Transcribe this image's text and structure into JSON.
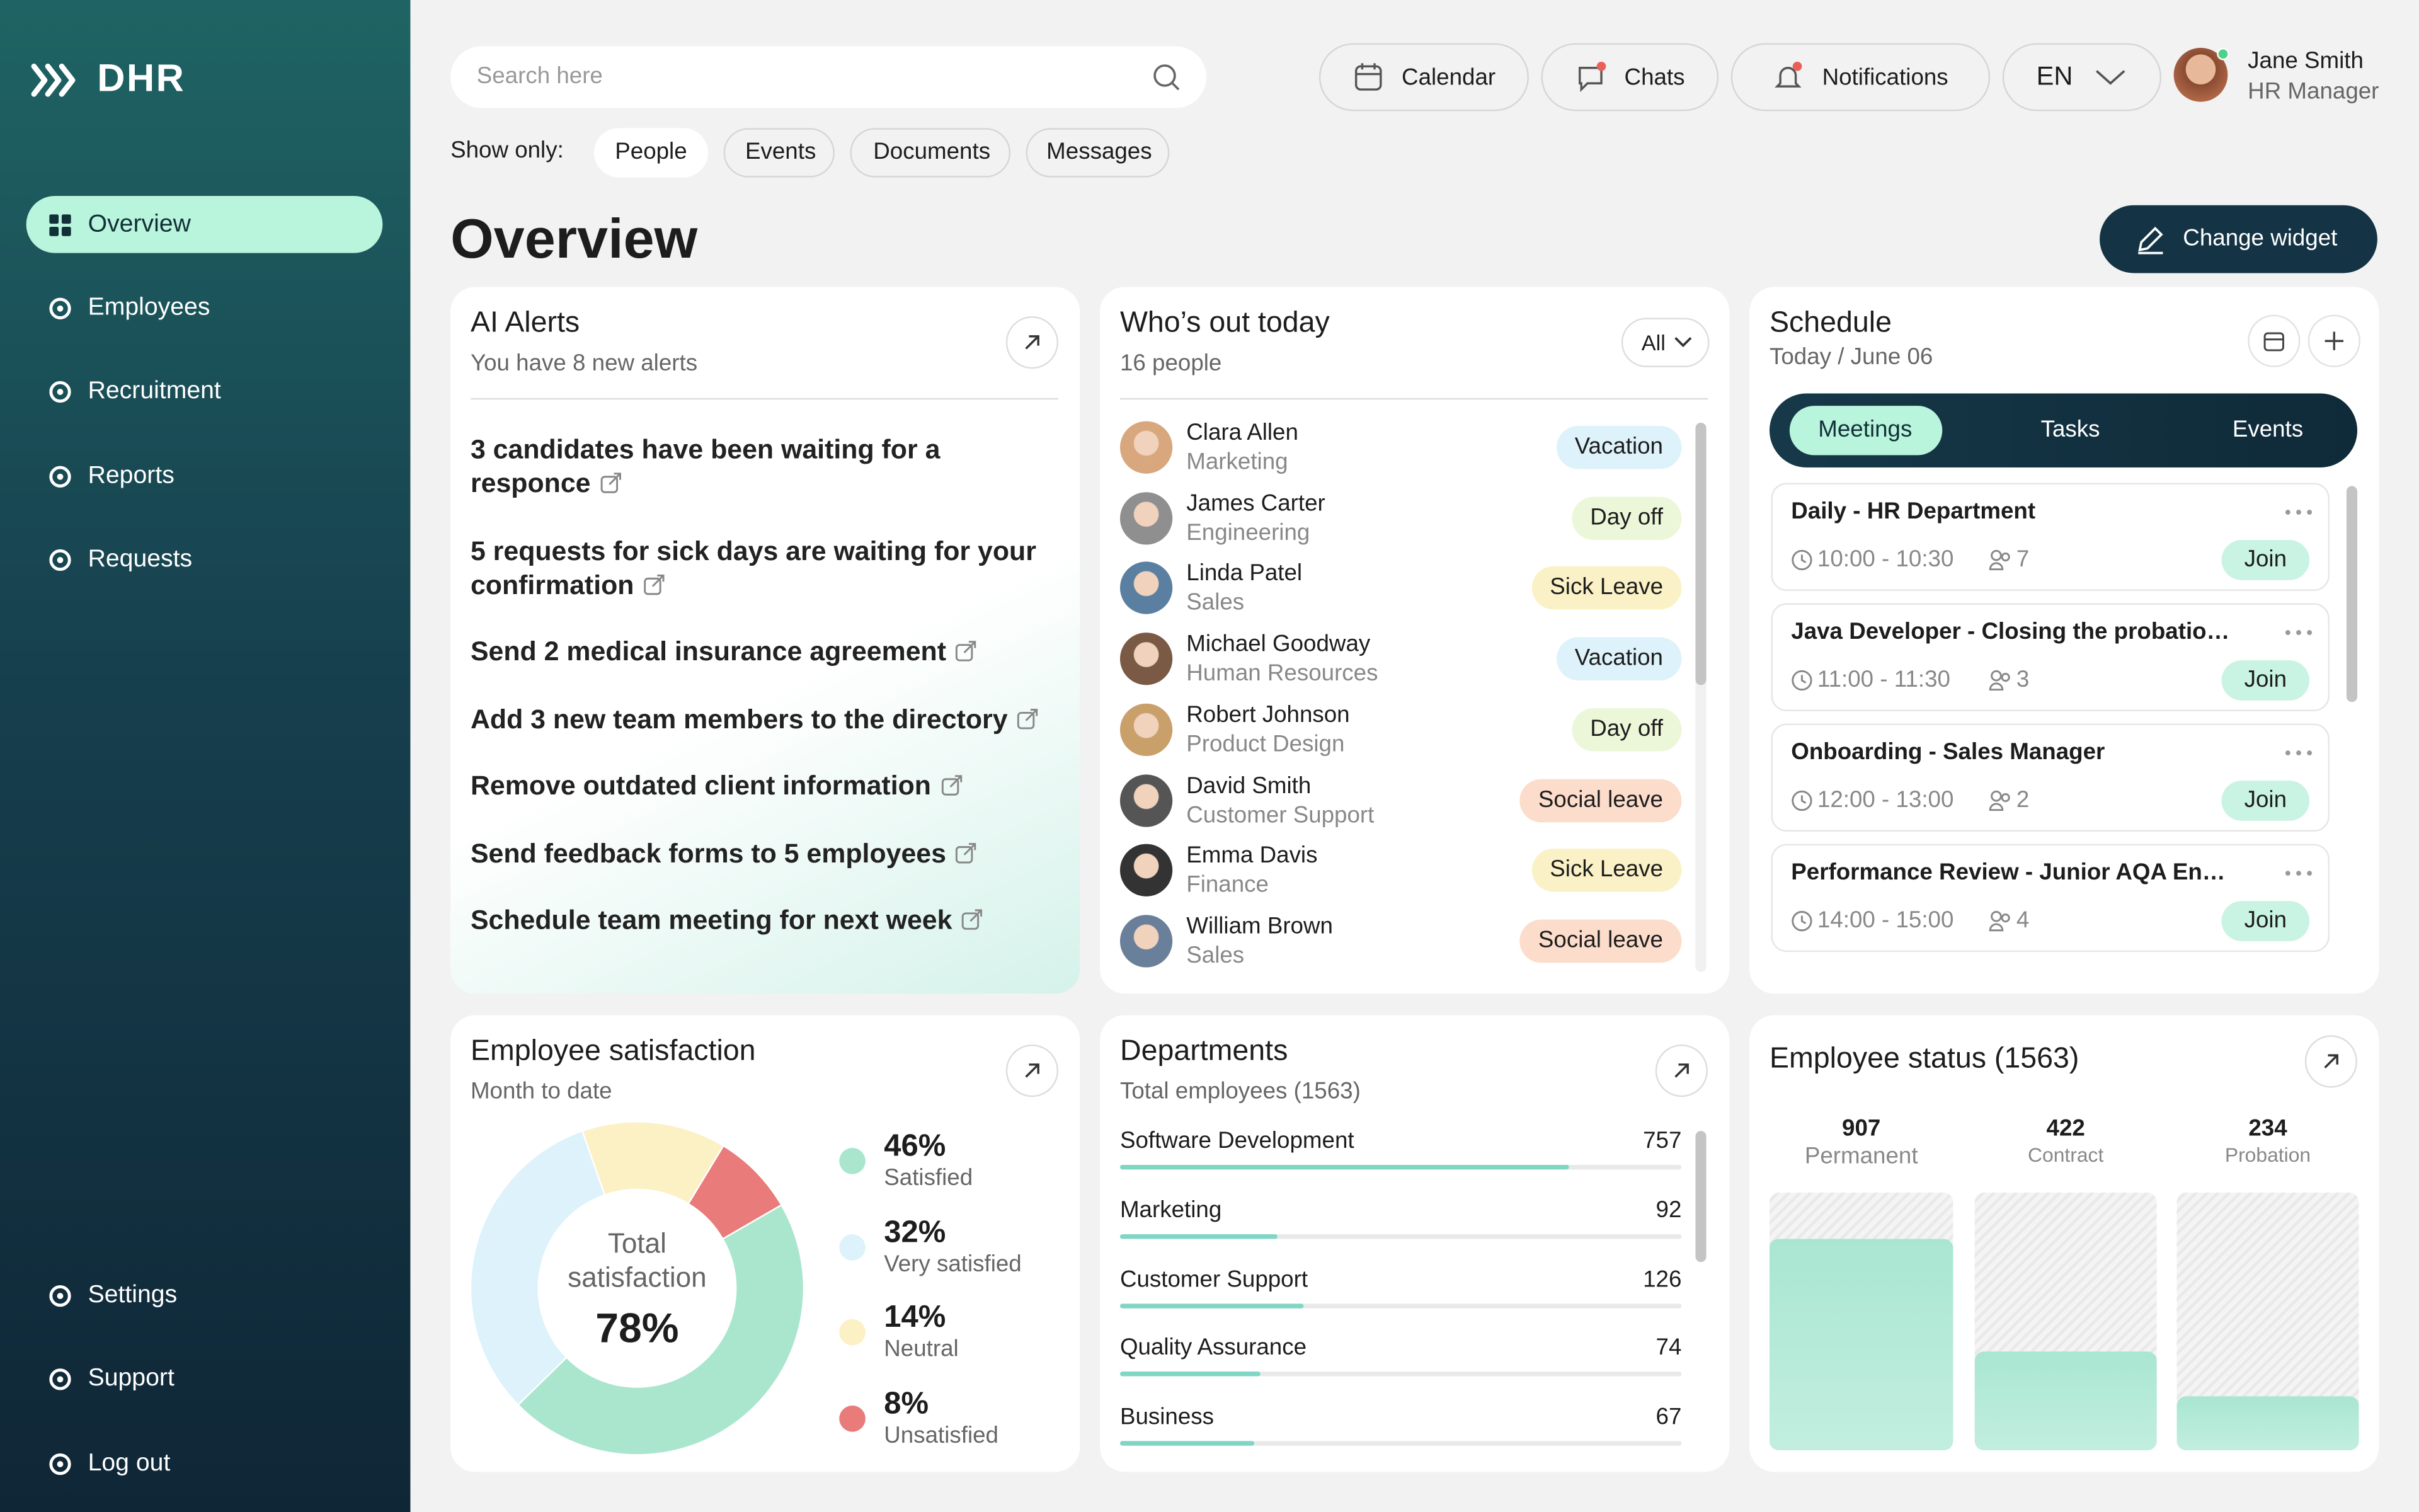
{
  "sidebar": {
    "brand": "DHR",
    "nav": [
      "Overview",
      "Employees",
      "Recruitment",
      "Reports",
      "Requests"
    ],
    "footer_nav": [
      "Settings",
      "Support",
      "Log out"
    ]
  },
  "header": {
    "search_placeholder": "Search here",
    "buttons": [
      "Calendar",
      "Chats",
      "Notifications"
    ],
    "language": "EN",
    "user": {
      "name": "Jane Smith",
      "role": "HR Manager"
    },
    "filter_label": "Show only:",
    "filters": [
      "People",
      "Events",
      "Documents",
      "Messages"
    ]
  },
  "page": {
    "title": "Overview",
    "action": "Change widget"
  },
  "ai_alerts": {
    "title": "AI Alerts",
    "subtitle": "You have 8 new alerts",
    "items": [
      "3 candidates have been waiting for a responce",
      "5 requests for sick days are waiting for your confirmation",
      "Send 2 medical insurance agreement",
      "Add 3 new team members to the directory",
      "Remove outdated client information",
      "Send feedback forms to 5 employees",
      "Schedule team meeting for next week"
    ]
  },
  "out_today": {
    "title": "Who’s out today",
    "subtitle": "16 people",
    "filter": "All",
    "people": [
      {
        "name": "Clara Allen",
        "department": "Marketing",
        "status": "Vacation",
        "color": "#ddf2fa"
      },
      {
        "name": "James Carter",
        "department": "Engineering",
        "status": "Day off",
        "color": "#ecf6d8"
      },
      {
        "name": "Linda Patel",
        "department": "Sales",
        "status": "Sick Leave",
        "color": "#fbf1c6"
      },
      {
        "name": "Michael Goodway",
        "department": "Human Resources",
        "status": "Vacation",
        "color": "#ddf2fa"
      },
      {
        "name": "Robert Johnson",
        "department": "Product Design",
        "status": "Day off",
        "color": "#ecf6d8"
      },
      {
        "name": "David Smith",
        "department": "Customer Support",
        "status": "Social leave",
        "color": "#fcdccb"
      },
      {
        "name": "Emma Davis",
        "department": "Finance",
        "status": "Sick Leave",
        "color": "#fbf1c6"
      },
      {
        "name": "William Brown",
        "department": "Sales",
        "status": "Social leave",
        "color": "#fcdccb"
      }
    ]
  },
  "schedule": {
    "title": "Schedule",
    "subtitle": "Today / June 06",
    "tabs": [
      "Meetings",
      "Tasks",
      "Events"
    ],
    "meetings": [
      {
        "title": "Daily - HR Department",
        "time": "10:00 - 10:30",
        "attendees": 7,
        "action": "Join"
      },
      {
        "title": "Java Developer - Closing the probatio…",
        "time": "11:00 - 11:30",
        "attendees": 3,
        "action": "Join"
      },
      {
        "title": "Onboarding - Sales Manager",
        "time": "12:00 - 13:00",
        "attendees": 2,
        "action": "Join"
      },
      {
        "title": "Performance Review - Junior AQA En…",
        "time": "14:00 - 15:00",
        "attendees": 4,
        "action": "Join"
      }
    ]
  },
  "chart_data": [
    {
      "type": "pie",
      "title": "Employee satisfaction",
      "subtitle": "Month to date",
      "center_label": "Total satisfaction",
      "center_value": "78%",
      "categories": [
        "Satisfied",
        "Very satisfied",
        "Neutral",
        "Unsatisfied"
      ],
      "values": [
        46,
        32,
        14,
        8
      ],
      "value_labels": [
        "46%",
        "32%",
        "14%",
        "8%"
      ],
      "colors": [
        "#a9e6cd",
        "#ddf2fb",
        "#fbf1c4",
        "#e97b7b"
      ]
    },
    {
      "type": "hbar",
      "title": "Departments",
      "subtitle": "Total employees (1563)",
      "categories": [
        "Software Development",
        "Marketing",
        "Customer Support",
        "Quality Assurance",
        "Business"
      ],
      "values": [
        757,
        92,
        126,
        74,
        67
      ],
      "color": "#7fd6c4"
    },
    {
      "type": "bar",
      "title": "Employee status (1563)",
      "categories": [
        "Permanent",
        "Contract",
        "Probation"
      ],
      "values": [
        907,
        422,
        234
      ],
      "color": "#a9e6d2"
    }
  ]
}
